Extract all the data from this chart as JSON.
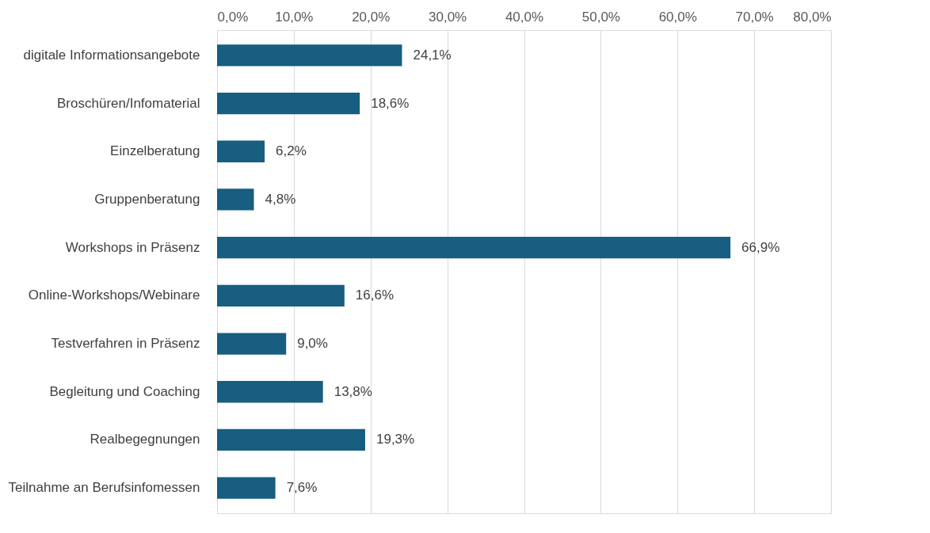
{
  "chart_data": {
    "type": "bar",
    "orientation": "horizontal",
    "categories": [
      "digitale Informationsangebote",
      "Broschüren/Infomaterial",
      "Einzelberatung",
      "Gruppenberatung",
      "Workshops in Präsenz",
      "Online-Workshops/Webinare",
      "Testverfahren in Präsenz",
      "Begleitung und Coaching",
      "Realbegegnungen",
      "Teilnahme an Berufsinfomessen"
    ],
    "values": [
      24.1,
      18.6,
      6.2,
      4.8,
      66.9,
      16.6,
      9.0,
      13.8,
      19.3,
      7.6
    ],
    "value_labels": [
      "24,1%",
      "18,6%",
      "6,2%",
      "4,8%",
      "66,9%",
      "16,6%",
      "9,0%",
      "13,8%",
      "19,3%",
      "7,6%"
    ],
    "color": "#175e80",
    "xlim": [
      0,
      80
    ],
    "xticks": [
      {
        "value": 0,
        "label": "0,0%"
      },
      {
        "value": 10,
        "label": "10,0%"
      },
      {
        "value": 20,
        "label": "20,0%"
      },
      {
        "value": 30,
        "label": "30,0%"
      },
      {
        "value": 40,
        "label": "40,0%"
      },
      {
        "value": 50,
        "label": "50,0%"
      },
      {
        "value": 60,
        "label": "60,0%"
      },
      {
        "value": 70,
        "label": "70,0%"
      },
      {
        "value": 80,
        "label": "80,0%"
      }
    ],
    "grid": "x"
  }
}
